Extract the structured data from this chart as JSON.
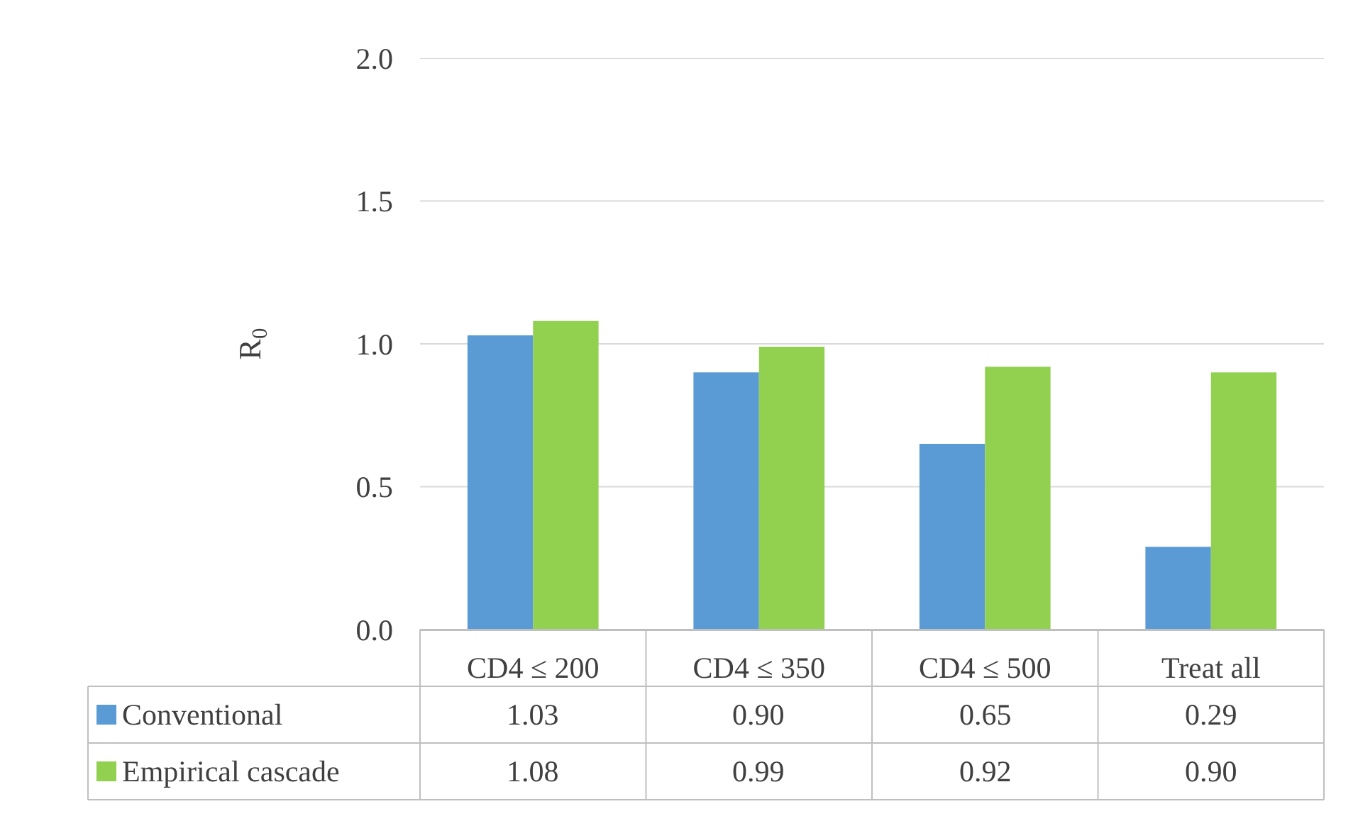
{
  "chart_data": {
    "type": "bar",
    "ylabel": "R$_{0}$",
    "categories": [
      "CD4 ≤ 200",
      "CD4 ≤ 350",
      "CD4 ≤ 500",
      "Treat all"
    ],
    "series": [
      {
        "name": "Conventional",
        "color": "#5b9bd5",
        "values": [
          1.03,
          0.9,
          0.65,
          0.29
        ],
        "value_labels": [
          "1.03",
          "0.90",
          "0.65",
          "0.29"
        ]
      },
      {
        "name": "Empirical cascade",
        "color": "#92d050",
        "values": [
          1.08,
          0.99,
          0.92,
          0.9
        ],
        "value_labels": [
          "1.08",
          "0.99",
          "0.92",
          "0.90"
        ]
      }
    ],
    "ylim": [
      0,
      2
    ],
    "yticks": [
      {
        "value": 0,
        "label": "0.0"
      },
      0.5,
      {
        "value": 1,
        "label": "1.0"
      },
      1.5,
      {
        "value": 2,
        "label": "2.0"
      }
    ],
    "grid": "y",
    "legend": "bottom"
  }
}
